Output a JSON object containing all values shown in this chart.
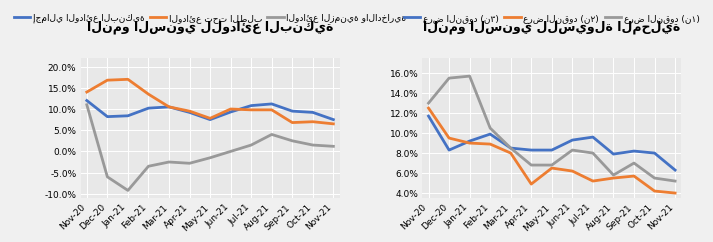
{
  "left_title": "النمو السنوي للودائع البنكية",
  "left_labels": [
    "Nov-20",
    "Dec-20",
    "Jan-21",
    "Feb-21",
    "Mar-21",
    "Apr-21",
    "May-21",
    "Jun-21",
    "Jul-21",
    "Aug-21",
    "Sep-21",
    "Oct-21",
    "Nov-21"
  ],
  "left_blue_label": "إجمالي الودائع البنكية",
  "left_orange_label": "الودائع تحت الطلب",
  "left_gray_label": "الودائع الزمنية والادخارية",
  "left_blue": [
    12.0,
    8.2,
    8.4,
    10.2,
    10.5,
    9.2,
    7.5,
    9.3,
    10.8,
    11.2,
    9.5,
    9.2,
    7.5
  ],
  "left_orange": [
    14.0,
    16.8,
    17.0,
    13.5,
    10.5,
    9.5,
    7.8,
    10.0,
    9.8,
    9.8,
    6.8,
    7.0,
    6.5
  ],
  "left_gray": [
    11.0,
    -6.0,
    -9.2,
    -3.5,
    -2.5,
    -2.8,
    -1.5,
    0.0,
    1.5,
    4.0,
    2.5,
    1.5,
    1.2
  ],
  "left_ylim": [
    -11,
    22
  ],
  "left_yticks": [
    -10.0,
    -5.0,
    0.0,
    5.0,
    10.0,
    15.0,
    20.0
  ],
  "right_title": "النمو السنوي للسيولة المحلية",
  "right_labels": [
    "Nov-20",
    "Dec-20",
    "Jan-21",
    "Feb-21",
    "Mar-21",
    "Apr-21",
    "May-21",
    "Jun-21",
    "Jul-21",
    "Aug-21",
    "Sep-21",
    "Oct-21",
    "Nov-21"
  ],
  "right_blue_label": "عرض النقود (ن٣)",
  "right_orange_label": "عرض النقود (ن٢)",
  "right_gray_label": "عرض النقود (ن١)",
  "right_blue": [
    11.7,
    8.3,
    9.2,
    9.9,
    8.5,
    8.3,
    8.3,
    9.3,
    9.6,
    7.9,
    8.2,
    8.0,
    6.3
  ],
  "right_orange": [
    12.5,
    9.5,
    9.0,
    8.9,
    8.0,
    4.9,
    6.5,
    6.2,
    5.2,
    5.5,
    5.7,
    4.2,
    4.0
  ],
  "right_gray": [
    13.0,
    15.5,
    15.7,
    10.5,
    8.5,
    6.8,
    6.8,
    8.3,
    8.0,
    5.8,
    7.0,
    5.5,
    5.2
  ],
  "right_ylim": [
    3.5,
    17.5
  ],
  "right_yticks": [
    4.0,
    6.0,
    8.0,
    10.0,
    12.0,
    14.0,
    16.0
  ],
  "blue_color": "#4472c4",
  "orange_color": "#ed7d31",
  "gray_color": "#999999",
  "bg_color": "#f0f0f0",
  "plot_bg": "#e8e8e8",
  "line_width": 2.0,
  "font_size_title": 9,
  "font_size_legend": 6.5,
  "font_size_tick": 6.5
}
